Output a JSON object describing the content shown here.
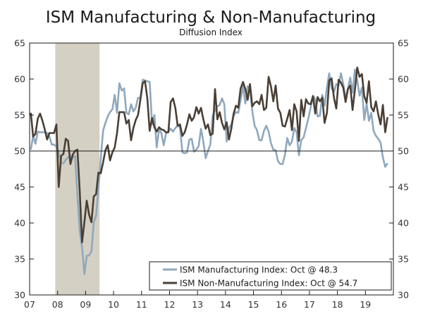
{
  "chart_data": {
    "type": "line",
    "title": "ISM Manufacturing & Non-Manufacturing",
    "subtitle": "Diffusion Index",
    "x_ticks": [
      "07",
      "08",
      "09",
      "10",
      "11",
      "12",
      "13",
      "14",
      "15",
      "16",
      "17",
      "18",
      "19"
    ],
    "x_range": [
      "2007-01",
      "2019-12"
    ],
    "y_ticks_left": [
      30,
      35,
      40,
      45,
      50,
      55,
      60,
      65
    ],
    "y_ticks_right": [
      30,
      35,
      40,
      45,
      50,
      55,
      60,
      65
    ],
    "ylim": [
      30,
      65
    ],
    "reference_line": 50,
    "grid": false,
    "legend_position": "bottom-right",
    "recession_shading": {
      "start": "2007-12",
      "end": "2009-06",
      "color": "#d5d0c4"
    },
    "series": [
      {
        "name": "ISM Manufacturing Index: Oct @ 48.3",
        "color": "#8fa8bd",
        "start": "2007-01",
        "frequency": "monthly",
        "values": [
          50.2,
          52.1,
          51.0,
          52.7,
          52.6,
          52.6,
          52.6,
          52.5,
          52.0,
          50.9,
          50.9,
          50.6,
          49.8,
          48.3,
          48.3,
          48.8,
          49.1,
          49.3,
          49.1,
          49.3,
          43.9,
          38.9,
          36.6,
          32.9,
          35.4,
          35.5,
          36.0,
          40.1,
          41.0,
          44.8,
          48.9,
          52.8,
          53.9,
          54.8,
          55.4,
          55.8,
          57.8,
          55.3,
          59.4,
          58.4,
          58.7,
          55.3,
          55.1,
          56.5,
          55.5,
          56.0,
          57.4,
          57.3,
          59.9,
          59.8,
          59.7,
          59.6,
          53.7,
          55.0,
          50.5,
          53.0,
          52.5,
          50.8,
          52.4,
          52.7,
          53.1,
          52.7,
          53.2,
          53.5,
          53.3,
          49.8,
          49.7,
          49.8,
          51.6,
          51.7,
          49.9,
          50.2,
          50.7,
          53.1,
          51.3,
          49.0,
          50.0,
          50.9,
          54.9,
          55.7,
          56.2,
          56.4,
          57.3,
          56.5,
          51.3,
          53.2,
          53.7,
          54.9,
          55.4,
          55.3,
          57.1,
          59.0,
          56.6,
          59.0,
          58.7,
          55.5,
          53.5,
          52.9,
          51.5,
          51.5,
          52.8,
          53.5,
          52.7,
          51.1,
          50.2,
          50.1,
          48.6,
          48.2,
          48.2,
          49.5,
          51.8,
          50.8,
          51.3,
          53.2,
          52.6,
          49.4,
          51.5,
          51.9,
          53.2,
          54.5,
          56.0,
          57.7,
          57.2,
          54.8,
          54.9,
          57.8,
          56.3,
          58.8,
          60.8,
          58.7,
          58.2,
          59.3,
          59.1,
          60.8,
          59.3,
          57.3,
          58.7,
          60.2,
          58.1,
          61.3,
          59.8,
          57.7,
          58.8,
          54.3,
          56.6,
          54.2,
          55.3,
          52.8,
          52.1,
          51.7,
          51.2,
          49.1,
          47.8,
          48.3
        ]
      },
      {
        "name": "ISM Non-Manufacturing Index: Oct @ 54.7",
        "color": "#4a3f35",
        "start": "2007-01",
        "frequency": "monthly",
        "values": [
          55.3,
          52.0,
          52.4,
          54.5,
          55.2,
          54.2,
          53.0,
          51.6,
          52.5,
          52.5,
          52.5,
          53.7,
          45.0,
          49.3,
          49.6,
          51.7,
          51.4,
          48.2,
          49.5,
          50.0,
          50.2,
          44.4,
          37.3,
          40.1,
          43.1,
          41.2,
          40.1,
          43.7,
          44.0,
          47.0,
          46.9,
          48.4,
          50.1,
          50.8,
          48.7,
          49.8,
          50.5,
          52.5,
          55.4,
          55.4,
          55.4,
          53.8,
          54.3,
          51.5,
          53.2,
          54.3,
          55.0,
          57.1,
          59.4,
          59.7,
          57.3,
          52.8,
          54.6,
          53.3,
          52.7,
          53.3,
          53.0,
          52.9,
          52.6,
          52.6,
          56.8,
          57.3,
          56.0,
          53.5,
          53.7,
          52.1,
          52.6,
          53.7,
          55.1,
          54.2,
          54.7,
          56.1,
          55.2,
          56.0,
          54.4,
          53.1,
          53.7,
          52.2,
          52.4,
          58.6,
          54.4,
          55.4,
          53.9,
          53.0,
          54.0,
          51.6,
          53.1,
          55.2,
          56.3,
          56.0,
          58.7,
          59.6,
          58.6,
          57.1,
          59.3,
          56.2,
          56.7,
          56.9,
          56.5,
          57.8,
          55.7,
          56.0,
          60.3,
          59.0,
          56.9,
          59.1,
          55.9,
          55.3,
          53.5,
          53.4,
          54.5,
          55.7,
          52.9,
          56.5,
          55.5,
          51.4,
          57.1,
          54.8,
          57.2,
          56.6,
          56.5,
          57.6,
          55.2,
          57.5,
          56.9,
          57.4,
          53.9,
          55.3,
          59.8,
          60.1,
          57.4,
          55.9,
          59.9,
          59.5,
          58.8,
          56.8,
          58.6,
          59.1,
          55.7,
          58.5,
          61.6,
          60.3,
          60.7,
          57.6,
          56.7,
          59.7,
          56.1,
          55.5,
          56.9,
          55.1,
          53.7,
          56.4,
          52.6,
          54.7
        ]
      }
    ]
  }
}
